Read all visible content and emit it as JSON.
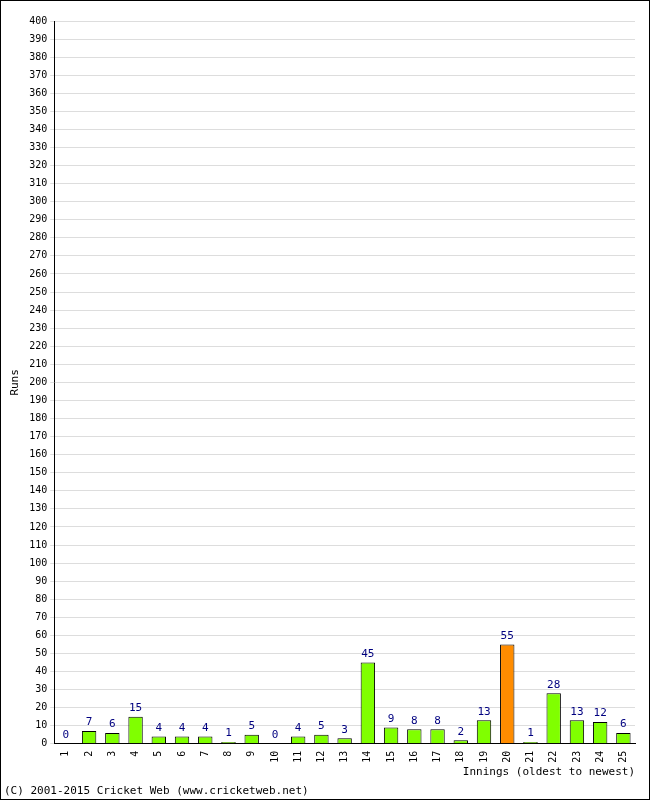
{
  "chart_data": {
    "type": "bar",
    "categories": [
      "1",
      "2",
      "3",
      "4",
      "5",
      "6",
      "7",
      "8",
      "9",
      "10",
      "11",
      "12",
      "13",
      "14",
      "15",
      "16",
      "17",
      "18",
      "19",
      "20",
      "21",
      "22",
      "23",
      "24",
      "25"
    ],
    "values": [
      0,
      7,
      6,
      15,
      4,
      4,
      4,
      1,
      5,
      0,
      4,
      5,
      3,
      45,
      9,
      8,
      8,
      2,
      13,
      55,
      1,
      28,
      13,
      12,
      6
    ],
    "colors": [
      "#80ff00",
      "#80ff00",
      "#80ff00",
      "#80ff00",
      "#80ff00",
      "#80ff00",
      "#80ff00",
      "#80ff00",
      "#80ff00",
      "#80ff00",
      "#80ff00",
      "#80ff00",
      "#80ff00",
      "#80ff00",
      "#80ff00",
      "#80ff00",
      "#80ff00",
      "#80ff00",
      "#80ff00",
      "#ff8c00",
      "#80ff00",
      "#80ff00",
      "#80ff00",
      "#80ff00",
      "#80ff00"
    ],
    "x_label": "Innings (oldest to newest)",
    "y_label": "Runs",
    "ylim": [
      0,
      400
    ],
    "yticks": [
      0,
      10,
      20,
      30,
      40,
      50,
      60,
      70,
      80,
      90,
      100,
      110,
      120,
      130,
      140,
      150,
      160,
      170,
      180,
      190,
      200,
      210,
      220,
      230,
      240,
      250,
      260,
      270,
      280,
      290,
      300,
      310,
      320,
      330,
      340,
      350,
      360,
      370,
      380,
      390,
      400
    ],
    "grid": true,
    "data_labels": true,
    "annotations": [
      "(C) 2001-2015 Cricket Web (www.cricketweb.net)"
    ]
  }
}
